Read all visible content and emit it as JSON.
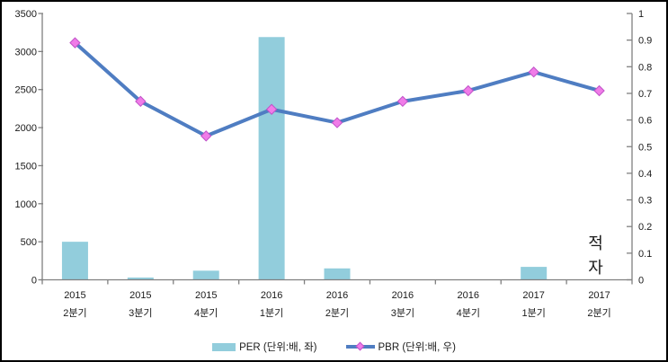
{
  "window": {
    "background": "#FFFFFF",
    "frame_border_color": "#000000"
  },
  "chart_data": {
    "type": "combo",
    "subtypes": [
      "bar",
      "line"
    ],
    "title": "",
    "xlabel": "",
    "ylabel_left": "",
    "ylabel_right": "",
    "grid": "off",
    "plot_background": "#FFFFFF",
    "axis_line_color": "#808080",
    "tick_text_color": "#1a1a1a",
    "legend_position": "bottom",
    "categories": [
      {
        "line1": "2015",
        "line2": "2분기"
      },
      {
        "line1": "2015",
        "line2": "3분기"
      },
      {
        "line1": "2015",
        "line2": "4분기"
      },
      {
        "line1": "2016",
        "line2": "1분기"
      },
      {
        "line1": "2016",
        "line2": "2분기"
      },
      {
        "line1": "2016",
        "line2": "3분기"
      },
      {
        "line1": "2016",
        "line2": "4분기"
      },
      {
        "line1": "2017",
        "line2": "1분기"
      },
      {
        "line1": "2017",
        "line2": "2분기"
      }
    ],
    "series": [
      {
        "name": "PER (단위:배, 좌)",
        "chart_type": "bar",
        "axis": "left",
        "color": "#92CDDC",
        "values": [
          500,
          30,
          120,
          3190,
          150,
          0,
          0,
          170,
          null
        ]
      },
      {
        "name": "PBR (단위:배, 우)",
        "chart_type": "line",
        "axis": "right",
        "line_color": "#4F7DC2",
        "marker": "diamond",
        "marker_fill": "#F07CE8",
        "marker_stroke": "#C052C8",
        "values": [
          0.89,
          0.67,
          0.54,
          0.64,
          0.59,
          0.67,
          0.71,
          0.78,
          0.71
        ]
      }
    ],
    "left_axis": {
      "min": 0,
      "max": 3500,
      "step": 500,
      "tick_labels": [
        "0",
        "500",
        "1000",
        "1500",
        "2000",
        "2500",
        "3000",
        "3500"
      ]
    },
    "right_axis": {
      "min": 0,
      "max": 1,
      "step": 0.1,
      "tick_labels": [
        "0",
        "0.1",
        "0.2",
        "0.3",
        "0.4",
        "0.5",
        "0.6",
        "0.7",
        "0.8",
        "0.9",
        "1"
      ]
    },
    "annotation": {
      "text": "적자",
      "stacked_lines": [
        "적",
        "자"
      ],
      "category_index": 8
    }
  }
}
